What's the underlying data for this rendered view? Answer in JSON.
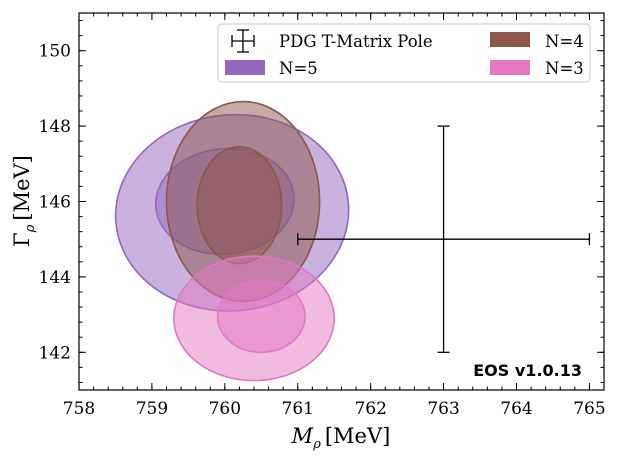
{
  "chart_data": {
    "type": "contour",
    "title": "",
    "xlabel": "M_ρ [MeV]",
    "ylabel": "Γ_ρ [MeV]",
    "xlabel_main": "M",
    "xlabel_sub": "ρ",
    "xlabel_unit": "[MeV]",
    "ylabel_main": "Γ",
    "ylabel_sub": "ρ",
    "ylabel_unit": "[MeV]",
    "xlim": [
      758,
      765.2
    ],
    "ylim": [
      141,
      151
    ],
    "xticks": [
      "758",
      "759",
      "760",
      "761",
      "762",
      "763",
      "764",
      "765"
    ],
    "yticks": [
      "142",
      "144",
      "146",
      "148",
      "150"
    ],
    "legend_position": "top-right",
    "legend": [
      {
        "label": "PDG T-Matrix Pole",
        "marker": "errorbar"
      },
      {
        "label": "N=4",
        "color": "#8c564b"
      },
      {
        "label": "N=5",
        "color": "#9467bd"
      },
      {
        "label": "N=3",
        "color": "#e377c2"
      }
    ],
    "series": [
      {
        "name": "N=5",
        "color": "#9467bd",
        "contours": [
          {
            "level": "outer",
            "cx": 760.1,
            "cy": 145.7,
            "rx": 1.6,
            "ry": 2.6,
            "angle": -5
          },
          {
            "level": "inner",
            "cx": 760.0,
            "cy": 146.0,
            "rx": 0.95,
            "ry": 1.4,
            "angle": -5
          }
        ]
      },
      {
        "name": "N=4",
        "color": "#8c564b",
        "contours": [
          {
            "level": "outer",
            "cx": 760.25,
            "cy": 146.0,
            "rx": 1.05,
            "ry": 2.65,
            "angle": 0
          },
          {
            "level": "inner",
            "cx": 760.2,
            "cy": 145.9,
            "rx": 0.58,
            "ry": 1.55,
            "angle": 0
          }
        ]
      },
      {
        "name": "N=3",
        "color": "#e377c2",
        "contours": [
          {
            "level": "outer",
            "cx": 760.4,
            "cy": 142.9,
            "rx": 1.1,
            "ry": 1.65,
            "angle": 0
          },
          {
            "level": "inner",
            "cx": 760.5,
            "cy": 142.95,
            "rx": 0.6,
            "ry": 0.95,
            "angle": 0
          }
        ]
      },
      {
        "name": "PDG T-Matrix Pole",
        "type": "errorbar",
        "x": 763.0,
        "y": 145.0,
        "xerr": 2.0,
        "yerr": 3.0
      }
    ],
    "watermark": "EOS v1.0.13",
    "watermark_color": "#f5a57a"
  }
}
